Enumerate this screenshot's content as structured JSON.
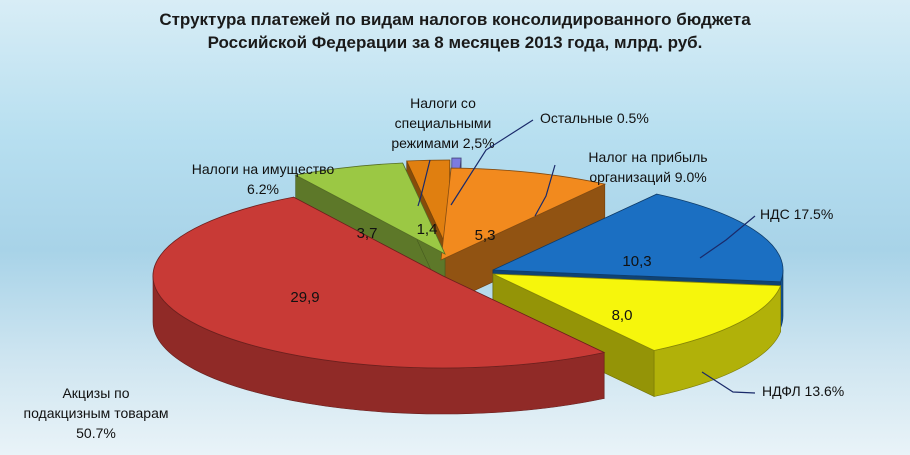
{
  "chart_data": {
    "type": "pie",
    "title_line1": "Структура платежей по видам налогов консолидированного бюджета",
    "title_line2": "Российской Федерации за 8 месяцев  2013 года, млрд. руб.",
    "unit": "млрд. руб.",
    "slices": [
      {
        "name": "Налог на прибыль организаций",
        "value": 5.3,
        "value_label": "5,3",
        "label_lines": [
          "Налог на прибыль",
          "организаций 9.0%"
        ],
        "color": "#f28a1e"
      },
      {
        "name": "НДС",
        "value": 10.3,
        "value_label": "10,3",
        "label_lines": [
          "НДС 17.5%"
        ],
        "color": "#1b6fc2"
      },
      {
        "name": "НДФЛ",
        "value": 8.0,
        "value_label": "8,0",
        "label_lines": [
          "НДФЛ 13.6%"
        ],
        "color": "#f6f60c"
      },
      {
        "name": "Акцизы по подакцизным товарам",
        "value": 29.9,
        "value_label": "29,9",
        "label_lines": [
          "Акцизы по",
          "подакцизным товарам",
          "50.7%"
        ],
        "color": "#c83a36"
      },
      {
        "name": "Налоги на имущество",
        "value": 3.7,
        "value_label": "3,7",
        "label_lines": [
          "Налоги на имущество",
          "6.2%"
        ],
        "color": "#9bc844"
      },
      {
        "name": "Налоги со специальными режимами",
        "value": 1.4,
        "value_label": "1,4",
        "label_lines": [
          "Налоги со",
          "специальными",
          "режимами 2,5%"
        ],
        "color": "#e07f10"
      },
      {
        "name": "Остальные",
        "value": 0.3,
        "value_label": "",
        "label_lines": [
          "Остальные 0.5%"
        ],
        "color": "#7b7be0"
      }
    ]
  }
}
